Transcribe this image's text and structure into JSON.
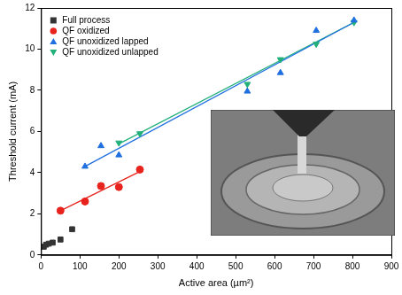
{
  "chart_data": {
    "type": "scatter",
    "x_label": "Active area (µm²)",
    "y_label": "Threshold current (mA)",
    "xlim": [
      0,
      900
    ],
    "xticks": [
      0,
      100,
      200,
      300,
      400,
      500,
      600,
      700,
      800,
      900
    ],
    "ylim": [
      0,
      12
    ],
    "yticks": [
      0,
      2,
      4,
      6,
      8,
      10,
      12
    ],
    "grid": false,
    "legend": "upper left",
    "series": [
      {
        "name": "Full process",
        "color": "#333333",
        "marker": "square",
        "x": [
          7,
          13,
          20,
          30,
          50,
          80
        ],
        "values": [
          0.4,
          0.5,
          0.55,
          0.6,
          0.75,
          1.25
        ]
      },
      {
        "name": "QF oxidized",
        "color": "#e8231d",
        "marker": "circle",
        "x": [
          50,
          113,
          154,
          200,
          254
        ],
        "values": [
          2.15,
          2.6,
          3.35,
          3.3,
          4.15
        ],
        "fit": {
          "x": [
            50,
            254
          ],
          "values": [
            2.15,
            4.05
          ]
        }
      },
      {
        "name": "QF unoxidized lapped",
        "color": "#1f6fe0",
        "marker": "triangle",
        "x": [
          113,
          154,
          200,
          530,
          615,
          707,
          804
        ],
        "values": [
          4.3,
          5.3,
          4.85,
          7.95,
          8.85,
          10.9,
          11.4
        ],
        "fit": {
          "x": [
            113,
            804
          ],
          "values": [
            4.3,
            11.3
          ]
        }
      },
      {
        "name": "QF unoxidized unlapped",
        "color": "#22b07a",
        "marker": "triangle-down",
        "x": [
          200,
          254,
          530,
          615,
          707,
          804
        ],
        "values": [
          5.45,
          5.9,
          8.3,
          9.5,
          10.25,
          11.3
        ],
        "fit": {
          "x": [
            200,
            804
          ],
          "values": [
            5.4,
            11.3
          ]
        }
      }
    ]
  }
}
